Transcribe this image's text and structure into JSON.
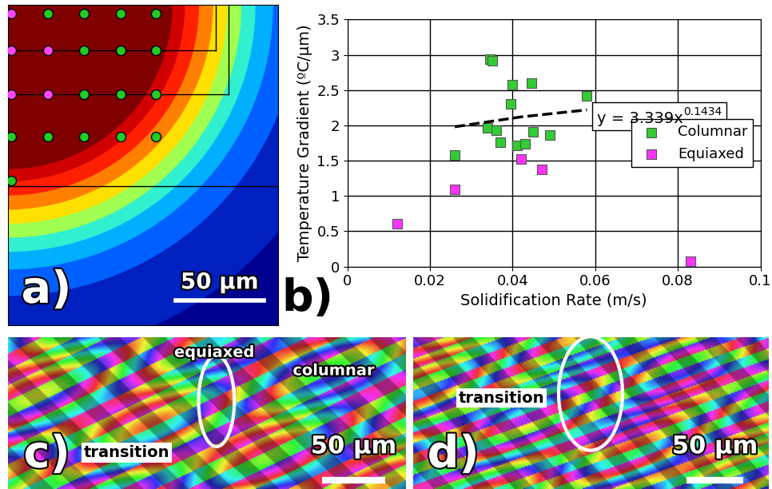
{
  "chart_data": [
    {
      "type": "scatter",
      "panel_label": "a)",
      "xlim": [
        0,
        153
      ],
      "ylim": [
        182,
        0
      ],
      "tick_labels": false,
      "scale_bar": {
        "value": 50,
        "label": "50 µm"
      },
      "series": [
        {
          "marker": "circle",
          "color": "#ff44ff",
          "x": [
            2,
            2,
            23,
            2,
            23
          ],
          "values": [
            5,
            26,
            26,
            51,
            51
          ]
        },
        {
          "marker": "circle",
          "color": "#22cc22",
          "x": [
            23,
            43,
            64,
            84,
            43,
            64,
            84,
            43,
            64,
            84,
            2,
            23,
            43,
            64,
            84,
            2
          ],
          "values": [
            5,
            5,
            5,
            5,
            26,
            26,
            26,
            51,
            51,
            51,
            75,
            75,
            75,
            75,
            75,
            100
          ]
        }
      ]
    },
    {
      "type": "scatter",
      "panel_label": "b)",
      "x_label": "Solidification Rate (m/s)",
      "y_label": "Temperature Gradient (ºC/µm)",
      "xlim": [
        0,
        0.1
      ],
      "xticks": [
        0,
        0.02,
        0.04,
        0.06,
        0.08,
        0.1
      ],
      "ylim": [
        0,
        3.5
      ],
      "yticks": [
        0,
        0.5,
        1,
        1.5,
        2,
        2.5,
        3,
        3.5
      ],
      "grid": true,
      "legend": "center right",
      "annotation": {
        "text": "y = 3.339x",
        "superscript": "0.1434"
      },
      "series": [
        {
          "name": "Columnar",
          "type": "scatter",
          "marker": "square",
          "color": "#33cc33",
          "x": [
            0.026,
            0.034,
            0.0345,
            0.035,
            0.036,
            0.037,
            0.0395,
            0.04,
            0.041,
            0.043,
            0.0445,
            0.045,
            0.049,
            0.058
          ],
          "values": [
            1.58,
            1.96,
            2.94,
            2.92,
            1.93,
            1.76,
            2.31,
            2.58,
            1.72,
            1.74,
            2.6,
            1.91,
            1.86,
            2.42
          ]
        },
        {
          "name": "Equiaxed",
          "type": "scatter",
          "marker": "square",
          "color": "#ff33ff",
          "x": [
            0.012,
            0.026,
            0.042,
            0.047,
            0.083
          ],
          "values": [
            0.61,
            1.09,
            1.52,
            1.38,
            0.07
          ]
        },
        {
          "type": "line",
          "line_style": "dashed",
          "color": "#000000",
          "x": [
            0.026,
            0.042,
            0.058
          ],
          "values": [
            1.98,
            2.12,
            2.22
          ]
        }
      ]
    },
    {
      "type": "image",
      "panel_label": "c)",
      "annotations": [
        "equiaxed",
        "columnar",
        "transition"
      ],
      "scale_bar": {
        "label": "50 µm"
      }
    },
    {
      "type": "image",
      "panel_label": "d)",
      "annotations": [
        "transition"
      ],
      "scale_bar": {
        "label": "50 µm"
      }
    }
  ]
}
